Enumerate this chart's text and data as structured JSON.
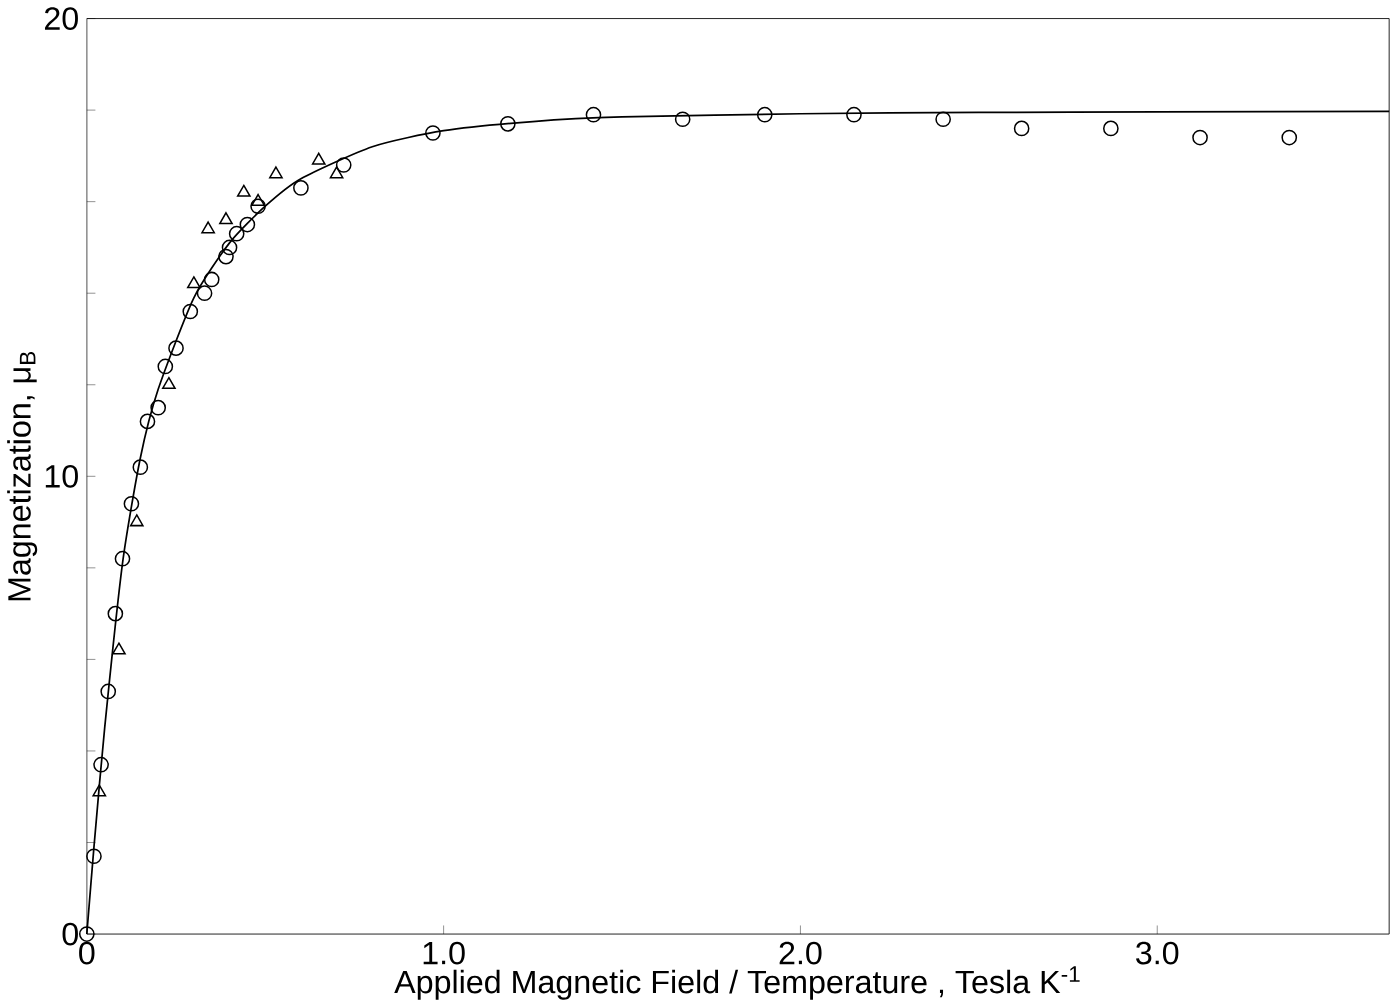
{
  "chart_data": {
    "type": "scatter",
    "xlabel": "Applied Magnetic Field / Temperature , Tesla  K$^{-1}$",
    "ylabel": "Magnetization,  μ$_{B}$",
    "xlim": [
      0,
      3.65
    ],
    "ylim": [
      0,
      20
    ],
    "xticks": [
      {
        "value": 0,
        "label": "0"
      },
      {
        "value": 1,
        "label": "1.0"
      },
      {
        "value": 2,
        "label": "2.0"
      },
      {
        "value": 3,
        "label": "3.0"
      }
    ],
    "yticks": [
      0,
      {
        "value": 2,
        "label": null
      },
      {
        "value": 4,
        "label": null
      },
      {
        "value": 6,
        "label": null
      },
      {
        "value": 8,
        "label": null
      },
      10,
      {
        "value": 12,
        "label": null
      },
      {
        "value": 14,
        "label": null
      },
      {
        "value": 16,
        "label": null
      },
      {
        "value": 18,
        "label": null
      },
      20
    ],
    "series": [
      {
        "color": "#000000",
        "marker": "circle",
        "x": [
          0,
          0.02,
          0.04,
          0.06,
          0.08,
          0.1,
          0.125,
          0.15,
          0.17,
          0.2,
          0.22,
          0.25,
          0.29,
          0.33,
          0.35,
          0.39,
          0.4,
          0.42,
          0.45,
          0.48,
          0.6,
          0.72,
          0.97,
          1.18,
          1.42,
          1.67,
          1.9,
          2.15,
          2.4,
          2.62,
          2.87,
          3.12,
          3.37
        ],
        "values": [
          0,
          1.7,
          3.7,
          5.3,
          7.0,
          8.2,
          9.4,
          10.2,
          11.2,
          11.5,
          12.4,
          12.8,
          13.6,
          14.0,
          14.3,
          14.8,
          15.0,
          15.3,
          15.5,
          15.9,
          16.3,
          16.8,
          17.5,
          17.7,
          17.9,
          17.8,
          17.9,
          17.9,
          17.8,
          17.6,
          17.6,
          17.4,
          17.4
        ]
      },
      {
        "color": "#000000",
        "marker": "triangle",
        "x": [
          0.035,
          0.09,
          0.14,
          0.23,
          0.3,
          0.34,
          0.39,
          0.44,
          0.48,
          0.53,
          0.65,
          0.7
        ],
        "values": [
          3.1,
          6.2,
          9.0,
          12.0,
          14.2,
          15.4,
          15.6,
          16.2,
          16.0,
          16.6,
          16.9,
          16.6
        ]
      },
      {
        "type": "line",
        "color": "#000000",
        "marker": "none",
        "line_style": "solid",
        "x": [
          0,
          0.02,
          0.05,
          0.1,
          0.15,
          0.2,
          0.3,
          0.4,
          0.5,
          0.6,
          0.8,
          1.0,
          1.25,
          1.5,
          2.0,
          2.5,
          3.0,
          3.65
        ],
        "values": [
          0,
          1.9,
          4.5,
          8.1,
          10.4,
          11.9,
          13.9,
          15.1,
          15.9,
          16.5,
          17.2,
          17.55,
          17.75,
          17.85,
          17.92,
          17.95,
          17.96,
          17.97
        ]
      }
    ]
  }
}
